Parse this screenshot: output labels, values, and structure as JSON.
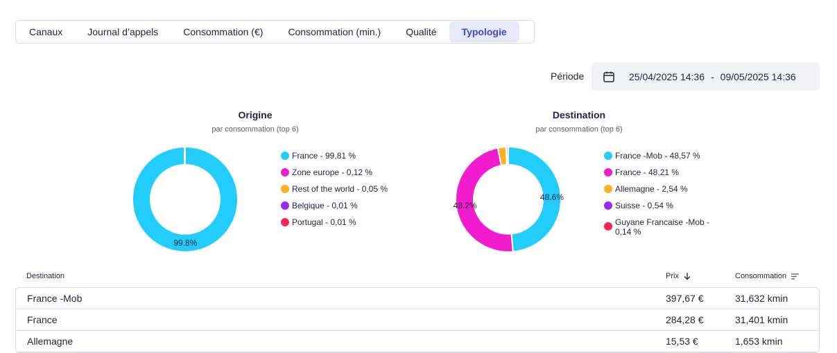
{
  "tabs": [
    {
      "label": "Canaux",
      "active": false
    },
    {
      "label": "Journal d’appels",
      "active": false
    },
    {
      "label": "Consommation (€)",
      "active": false
    },
    {
      "label": "Consommation (min.)",
      "active": false
    },
    {
      "label": "Qualité",
      "active": false
    },
    {
      "label": "Typologie",
      "active": true
    }
  ],
  "period": {
    "label": "Période",
    "icon": "calendar-icon",
    "start": "25/04/2025 14:36",
    "separator": "-",
    "end": "09/05/2025 14:36"
  },
  "charts": {
    "origin": {
      "title": "Origine",
      "subtitle": "par consommation (top 6)",
      "legend": [
        {
          "label": "France - 99,81 %",
          "color": "#22cdfc"
        },
        {
          "label": "Zone europe - 0,12 %",
          "color": "#f21ccf"
        },
        {
          "label": "Rest of the world - 0,05 %",
          "color": "#fbb120"
        },
        {
          "label": "Belgique - 0,01 %",
          "color": "#9a2bf0"
        },
        {
          "label": "Portugal - 0,01 %",
          "color": "#fa2355"
        }
      ],
      "slice_labels": {
        "france": "99.8%"
      }
    },
    "destination": {
      "title": "Destination",
      "subtitle": "par consommation (top 6)",
      "legend": [
        {
          "label": "France -Mob - 48,57 %",
          "color": "#22cdfc"
        },
        {
          "label": "France - 48,21 %",
          "color": "#f21ccf"
        },
        {
          "label": "Allemagne - 2,54 %",
          "color": "#fbb120"
        },
        {
          "label": "Suisse - 0,54 %",
          "color": "#9a2bf0"
        },
        {
          "label": "Guyane Francaise -Mob - 0,14 %",
          "color": "#fa2355"
        }
      ],
      "slice_labels": {
        "france_mob": "48.6%",
        "france": "48.2%"
      }
    }
  },
  "chart_data": [
    {
      "type": "pie",
      "title": "Origine",
      "subtitle": "par consommation (top 6)",
      "categories": [
        "France",
        "Zone europe",
        "Rest of the world",
        "Belgique",
        "Portugal"
      ],
      "values": [
        99.81,
        0.12,
        0.05,
        0.01,
        0.01
      ],
      "colors": [
        "#22cdfc",
        "#f21ccf",
        "#fbb120",
        "#9a2bf0",
        "#fa2355"
      ],
      "style": "donut",
      "legend_position": "right"
    },
    {
      "type": "pie",
      "title": "Destination",
      "subtitle": "par consommation (top 6)",
      "categories": [
        "France -Mob",
        "France",
        "Allemagne",
        "Suisse",
        "Guyane Francaise -Mob"
      ],
      "values": [
        48.57,
        48.21,
        2.54,
        0.54,
        0.14
      ],
      "colors": [
        "#22cdfc",
        "#f21ccf",
        "#fbb120",
        "#9a2bf0",
        "#fa2355"
      ],
      "style": "donut",
      "legend_position": "right"
    }
  ],
  "table": {
    "headers": {
      "destination": "Destination",
      "price": "Prix",
      "price_icon": "arrow-down-icon",
      "consumption": "Consommation",
      "consumption_icon": "sort-icon"
    },
    "rows": [
      {
        "destination": "France -Mob",
        "price": "397,67 €",
        "consumption": "31,632 kmin"
      },
      {
        "destination": "France",
        "price": "284,28 €",
        "consumption": "31,401 kmin"
      },
      {
        "destination": "Allemagne",
        "price": "15,53 €",
        "consumption": "1,653 kmin"
      }
    ]
  }
}
